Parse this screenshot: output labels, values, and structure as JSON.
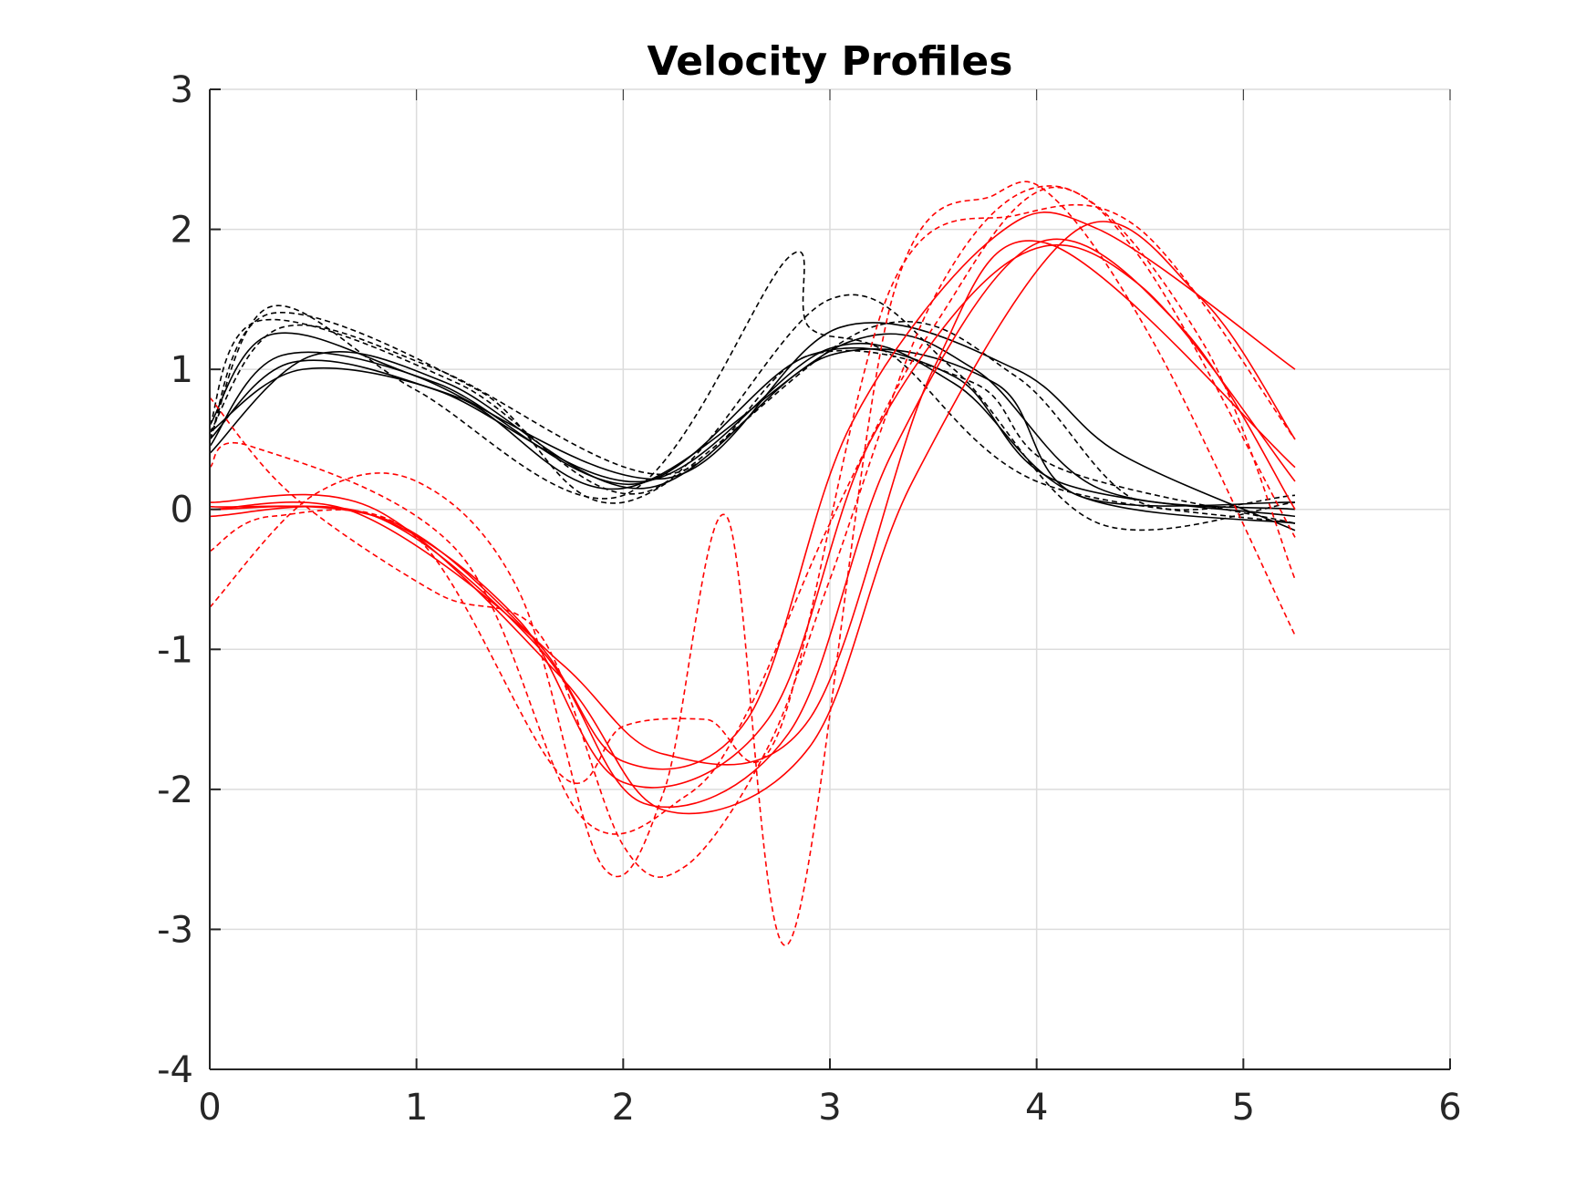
{
  "chart_data": {
    "type": "line",
    "title": "Velocity Profiles",
    "xlabel": "",
    "ylabel": "",
    "xlim": [
      0,
      6
    ],
    "ylim": [
      -4,
      3
    ],
    "xticks": [
      "0",
      "1",
      "2",
      "3",
      "4",
      "5",
      "6"
    ],
    "yticks": [
      "3",
      "2",
      "1",
      "0",
      "-1",
      "-2",
      "-3",
      "-4"
    ],
    "grid": true,
    "legend": "none",
    "series": [
      {
        "color": "#000000",
        "style": "solid",
        "x": [
          0,
          0.35,
          1.1,
          2.05,
          2.9,
          3.6,
          4.1,
          5.25
        ],
        "y": [
          0.45,
          1.1,
          0.9,
          0.18,
          1.1,
          0.95,
          0.2,
          -0.05
        ]
      },
      {
        "color": "#000000",
        "style": "solid",
        "x": [
          0,
          0.4,
          1.1,
          2.1,
          3.0,
          3.6,
          4.2,
          5.25
        ],
        "y": [
          0.5,
          1.05,
          0.85,
          0.2,
          1.15,
          0.9,
          0.1,
          -0.1
        ]
      },
      {
        "color": "#000000",
        "style": "solid",
        "x": [
          0,
          0.45,
          1.2,
          2.0,
          3.1,
          3.7,
          4.3,
          5.25
        ],
        "y": [
          0.55,
          1.0,
          0.8,
          0.15,
          1.2,
          1.0,
          0.15,
          0.0
        ]
      },
      {
        "color": "#000000",
        "style": "solid",
        "x": [
          0,
          0.3,
          1.0,
          2.2,
          3.05,
          3.9,
          4.4,
          5.25
        ],
        "y": [
          0.6,
          1.25,
          0.95,
          0.22,
          1.3,
          1.0,
          0.4,
          -0.15
        ]
      },
      {
        "color": "#000000",
        "style": "solid",
        "x": [
          0,
          0.5,
          1.15,
          2.1,
          3.0,
          3.8,
          4.2,
          5.25
        ],
        "y": [
          0.4,
          1.1,
          0.9,
          0.15,
          1.1,
          0.9,
          0.1,
          0.05
        ]
      },
      {
        "color": "#000000",
        "style": "dashed",
        "x": [
          0,
          0.3,
          1.0,
          2.0,
          2.8,
          2.9,
          3.3,
          4.0,
          5.25
        ],
        "y": [
          0.5,
          1.45,
          0.85,
          0.1,
          1.8,
          1.3,
          1.1,
          0.2,
          -0.1
        ]
      },
      {
        "color": "#000000",
        "style": "dashed",
        "x": [
          0,
          0.25,
          1.2,
          2.1,
          3.0,
          3.6,
          4.3,
          5.25
        ],
        "y": [
          0.6,
          1.35,
          0.9,
          0.12,
          1.5,
          1.0,
          -0.1,
          0.05
        ]
      },
      {
        "color": "#000000",
        "style": "dashed",
        "x": [
          0,
          0.35,
          1.1,
          2.2,
          2.9,
          3.7,
          4.1,
          5.25
        ],
        "y": [
          0.55,
          1.3,
          1.0,
          0.25,
          1.1,
          0.9,
          0.3,
          -0.1
        ]
      },
      {
        "color": "#000000",
        "style": "dashed",
        "x": [
          0,
          0.3,
          1.3,
          2.0,
          3.2,
          3.9,
          4.5,
          5.25
        ],
        "y": [
          0.5,
          1.4,
          0.85,
          0.05,
          1.3,
          0.95,
          0.05,
          0.1
        ]
      },
      {
        "color": "#ff0000",
        "style": "solid",
        "x": [
          0,
          0.8,
          1.5,
          2.0,
          2.7,
          3.2,
          3.9,
          4.5,
          5.25
        ],
        "y": [
          0.0,
          -0.05,
          -0.8,
          -1.95,
          -1.5,
          0.5,
          1.8,
          1.6,
          0.2
        ]
      },
      {
        "color": "#ff0000",
        "style": "solid",
        "x": [
          0,
          0.8,
          1.6,
          2.1,
          2.8,
          3.3,
          4.0,
          4.7,
          5.25
        ],
        "y": [
          -0.05,
          -0.05,
          -1.0,
          -2.1,
          -1.6,
          0.4,
          1.9,
          1.3,
          0.0
        ]
      },
      {
        "color": "#ff0000",
        "style": "solid",
        "x": [
          0,
          0.8,
          1.7,
          2.2,
          2.9,
          3.4,
          4.2,
          4.8,
          5.25
        ],
        "y": [
          0.05,
          0.0,
          -1.2,
          -2.15,
          -1.7,
          0.2,
          2.0,
          1.5,
          0.5
        ]
      },
      {
        "color": "#ff0000",
        "style": "solid",
        "x": [
          0,
          0.7,
          1.55,
          2.0,
          2.6,
          3.1,
          3.8,
          4.3,
          5.25
        ],
        "y": [
          0.0,
          -0.02,
          -0.9,
          -1.8,
          -1.5,
          0.6,
          1.95,
          2.0,
          1.0
        ]
      },
      {
        "color": "#ff0000",
        "style": "solid",
        "x": [
          0,
          0.9,
          1.7,
          2.2,
          2.9,
          3.5,
          4.05,
          5.25
        ],
        "y": [
          0.02,
          -0.1,
          -1.1,
          -1.75,
          -1.5,
          1.0,
          1.9,
          0.3
        ]
      },
      {
        "color": "#ff0000",
        "style": "dashed",
        "x": [
          0,
          0.5,
          1.0,
          1.5,
          1.9,
          2.2,
          2.5,
          2.8,
          3.3,
          3.8,
          4.1,
          4.6,
          5.25
        ],
        "y": [
          -0.7,
          0.1,
          0.2,
          -0.6,
          -2.55,
          -2.0,
          -0.05,
          -3.1,
          1.5,
          2.25,
          2.2,
          1.1,
          -0.9
        ]
      },
      {
        "color": "#ff0000",
        "style": "dashed",
        "x": [
          0,
          0.4,
          1.1,
          1.6,
          2.0,
          2.3,
          2.7,
          3.0,
          3.5,
          4.0,
          4.5,
          5.25
        ],
        "y": [
          0.8,
          0.1,
          -0.6,
          -0.9,
          -2.4,
          -2.55,
          -1.7,
          -0.5,
          1.5,
          2.3,
          1.8,
          -0.2
        ]
      },
      {
        "color": "#ff0000",
        "style": "dashed",
        "x": [
          0,
          0.3,
          1.0,
          1.7,
          2.0,
          2.4,
          2.75,
          3.3,
          3.9,
          4.5,
          5.25
        ],
        "y": [
          -0.3,
          -0.05,
          -0.2,
          -1.9,
          -1.55,
          -1.5,
          -1.6,
          1.6,
          2.1,
          2.0,
          0.5
        ]
      },
      {
        "color": "#ff0000",
        "style": "dashed",
        "x": [
          0,
          0.2,
          1.2,
          1.8,
          2.3,
          2.6,
          3.0,
          3.5,
          4.1,
          4.8,
          5.25
        ],
        "y": [
          0.3,
          0.45,
          -0.3,
          -2.2,
          -2.05,
          -1.45,
          -0.1,
          1.3,
          2.3,
          1.2,
          -0.5
        ]
      }
    ]
  }
}
